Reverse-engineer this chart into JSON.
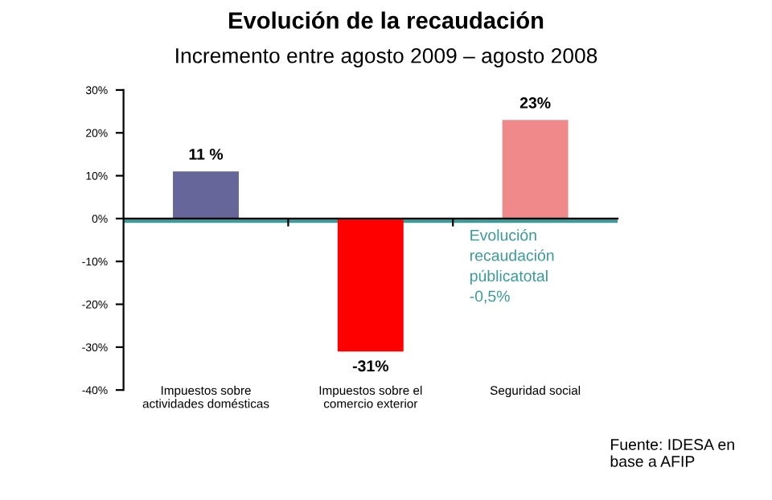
{
  "chart_data": {
    "type": "bar",
    "title": "Evolución de la recaudación",
    "subtitle": "Incremento entre agosto 2009 – agosto 2008",
    "categories": [
      "Impuestos sobre\nactividades domésticas",
      "Impuestos sobre el\ncomercio exterior",
      "Seguridad social"
    ],
    "values": [
      11,
      -31,
      23
    ],
    "colors": [
      "#66669a",
      "#ff0000",
      "#f08a8a"
    ],
    "value_labels": [
      "11 %",
      "-31%",
      "23%"
    ],
    "ylim": [
      -40,
      30
    ],
    "yticks": [
      {
        "value": 30,
        "label": "30%"
      },
      {
        "value": 20,
        "label": "20%"
      },
      {
        "value": 10,
        "label": "10%"
      },
      {
        "value": 0,
        "label": "0%"
      },
      {
        "value": -10,
        "label": "-10%"
      },
      {
        "value": -20,
        "label": "-20%"
      },
      {
        "value": -30,
        "label": "-30%"
      },
      {
        "value": -40,
        "label": "-40%"
      }
    ],
    "ref_lines": [
      {
        "axis": "y",
        "value": -0.5,
        "label": "Evolución\nrecaudación\npúblicatotal\n-0,5%",
        "color": "#3a9a9a"
      }
    ],
    "annotations": [
      "Fuente: IDESA en\nbase a AFIP"
    ],
    "grid": false,
    "legend": false
  }
}
